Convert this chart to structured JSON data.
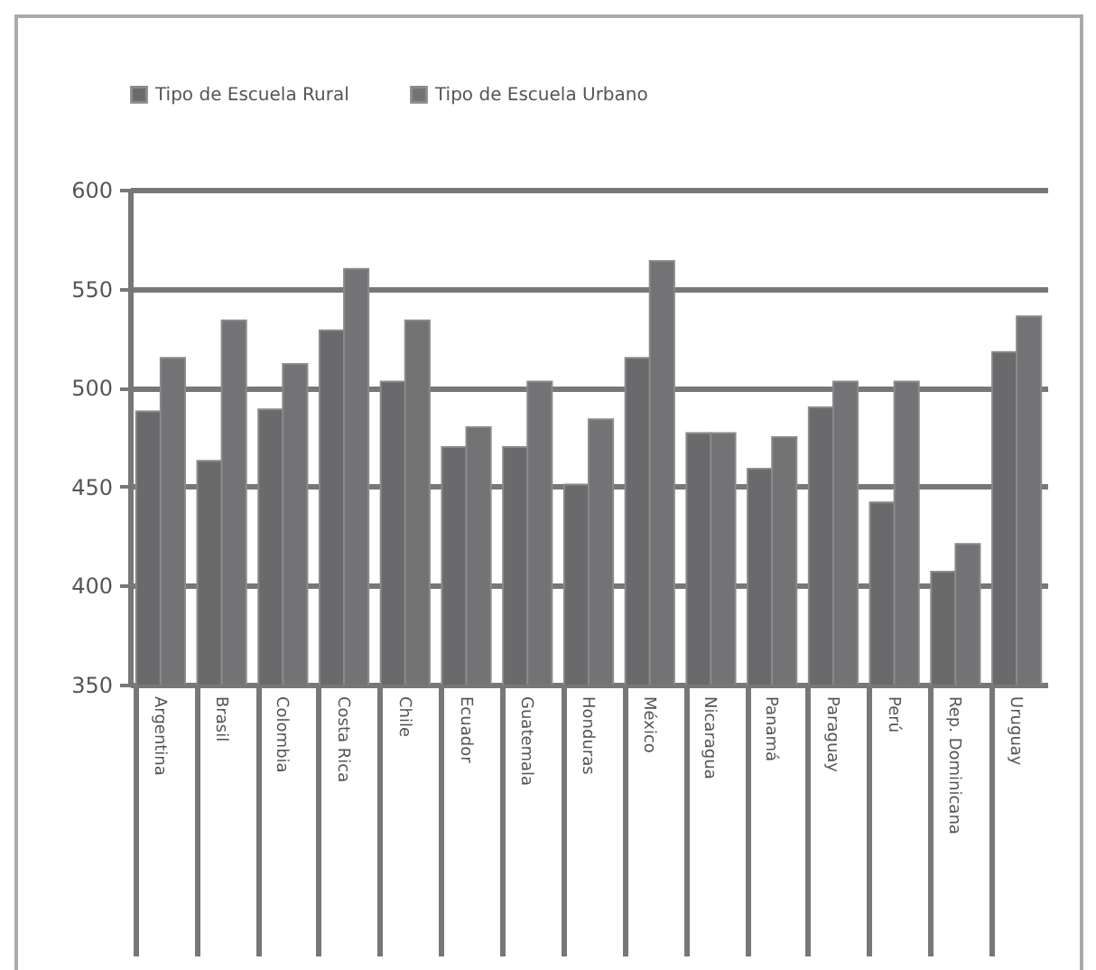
{
  "chart_data": {
    "type": "bar",
    "categories": [
      "Argentina",
      "Brasil",
      "Colombia",
      "Costa Rica",
      "Chile",
      "Ecuador",
      "Guatemala",
      "Honduras",
      "México",
      "Nicaragua",
      "Panamá",
      "Paraguay",
      "Perú",
      "Rep. Dominicana",
      "Uruguay"
    ],
    "series": [
      {
        "name": "Tipo de Escuela Rural",
        "color": "#6a6a6c",
        "values": [
          488,
          463,
          489,
          529,
          503,
          470,
          470,
          451,
          515,
          477,
          459,
          490,
          442,
          407,
          518
        ]
      },
      {
        "name": "Tipo de Escuela Urbano",
        "color": "#737375",
        "values": [
          515,
          534,
          512,
          560,
          534,
          480,
          503,
          484,
          564,
          477,
          475,
          503,
          503,
          421,
          536
        ]
      }
    ],
    "ylim": [
      350,
      600
    ],
    "yticks": [
      350,
      400,
      450,
      500,
      550,
      600
    ],
    "grid": "y",
    "legend": "top"
  }
}
